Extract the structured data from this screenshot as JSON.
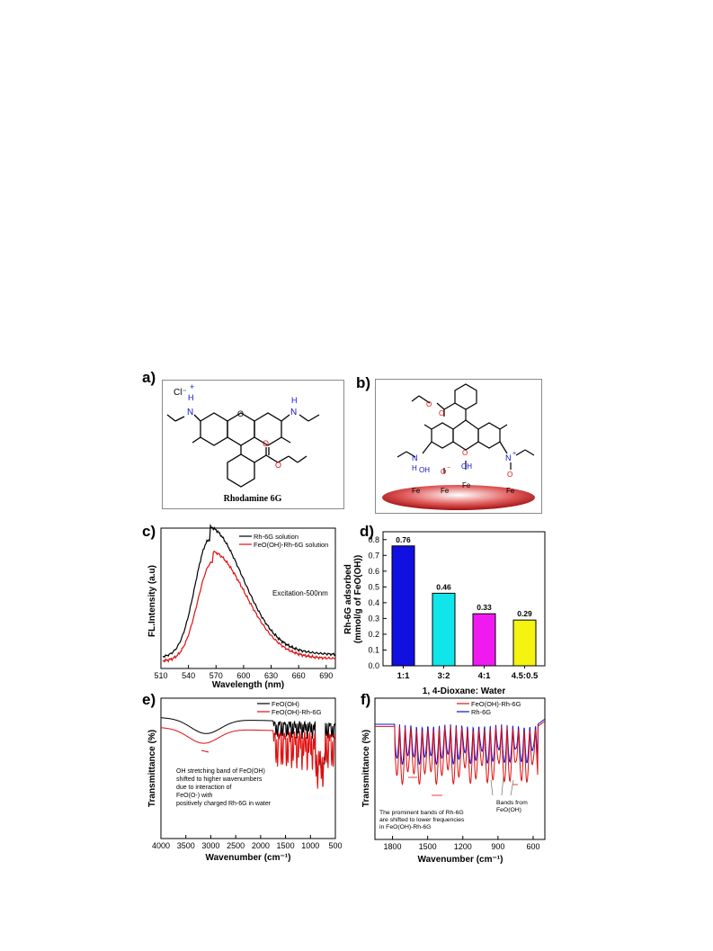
{
  "panels": {
    "a": {
      "label": "a)",
      "counter_ion": "Cl⁻",
      "charge": "+",
      "n_left": "N",
      "h_left": "H",
      "n_right": "N",
      "h_right": "H",
      "ring_oxygen": "O",
      "ester_o1": "O",
      "ester_o2": "O",
      "caption": "Rhodamine 6G"
    },
    "b": {
      "label": "b)",
      "ester_o1": "O",
      "ester_o2": "O",
      "ring_oxygen": "O",
      "n_left": "N",
      "h_left": "H",
      "n_right": "N",
      "n_right_charge": "+",
      "oh_left": "OH",
      "o_minus": "O",
      "o_minus_charge": "−",
      "oh_mid": "OH",
      "o_right": "O",
      "fe1": "Fe",
      "fe2": "Fe",
      "fe3": "Fe",
      "fe4": "Fe"
    },
    "c": {
      "label": "c)",
      "annotation": "Excitation-500nm",
      "accent_colors": {
        "rh6g": "#000000",
        "feooh": "#e01010"
      }
    },
    "d": {
      "label": "d)"
    },
    "e": {
      "label": "e)",
      "annotation_lines": [
        "OH stretching band of FeO(OH)",
        "shifted to higher wavenumbers",
        "due to interaction of",
        "FeO(O-) with",
        "positively charged Rh-6G in water"
      ]
    },
    "f": {
      "label": "f)",
      "annotation_lines": [
        "The prominent bands of Rh-6G",
        "are shifted to lower frequencies",
        "in FeO(OH)-Rh-6G"
      ],
      "bands_lines": [
        "Bands from",
        "FeO(OH)"
      ]
    }
  },
  "chart_data": [
    {
      "panel": "c",
      "type": "line",
      "xlabel": "Wavelength (nm)",
      "ylabel": "FL.Intensity (a.u)",
      "xlim": [
        510,
        700
      ],
      "xticks": [
        "510",
        "540",
        "570",
        "600",
        "630",
        "660",
        "690"
      ],
      "grid": false,
      "legend_position": "top-right",
      "series": [
        {
          "name": "Rh-6G solution",
          "color": "#000000",
          "peak": 563,
          "peak_rel": 1.0,
          "baseline": 0.06
        },
        {
          "name": "FeO(OH)-Rh-6G solution",
          "color": "#e01010",
          "peak": 566,
          "peak_rel": 0.84,
          "baseline": 0.03
        }
      ]
    },
    {
      "panel": "d",
      "type": "bar",
      "xlabel": "1, 4-Dioxane: Water",
      "ylabel_lines": [
        "Rh-6G adsorbed",
        "(mmol/g of FeO(OH))"
      ],
      "ylim": [
        0,
        0.85
      ],
      "yticks": [
        "0.0",
        "0.1",
        "0.2",
        "0.3",
        "0.4",
        "0.5",
        "0.6",
        "0.7",
        "0.8"
      ],
      "categories": [
        "1:1",
        "3:2",
        "4:1",
        "4.5:0.5"
      ],
      "values": [
        0.76,
        0.46,
        0.33,
        0.29
      ],
      "value_labels": [
        "0.76",
        "0.46",
        "0.33",
        "0.29"
      ],
      "colors": [
        "#1010e0",
        "#10e6ea",
        "#f01af0",
        "#f4f410"
      ]
    },
    {
      "panel": "e",
      "type": "line",
      "xlabel": "Wavenumber (cm⁻¹)",
      "ylabel": "Transmittance (%)",
      "xlim": [
        4000,
        500
      ],
      "xticks": [
        "4000",
        "3500",
        "3000",
        "2500",
        "2000",
        "1500",
        "1000",
        "500"
      ],
      "grid": false,
      "legend_position": "top-right",
      "series": [
        {
          "name": "FeO(OH)",
          "color": "#000000"
        },
        {
          "name": "FeO(OH)-Rh-6G",
          "color": "#e01010"
        }
      ]
    },
    {
      "panel": "f",
      "type": "line",
      "xlabel": "Wavenumber (cm⁻¹)",
      "ylabel": "Transmittance (%)",
      "xlim": [
        1950,
        500
      ],
      "xticks": [
        "1800",
        "1500",
        "1200",
        "900",
        "600"
      ],
      "grid": false,
      "legend_position": "top-right",
      "series": [
        {
          "name": "FeO(OH)-Rh-6G",
          "color": "#e01010"
        },
        {
          "name": "Rh-6G",
          "color": "#1010d0"
        }
      ]
    }
  ]
}
